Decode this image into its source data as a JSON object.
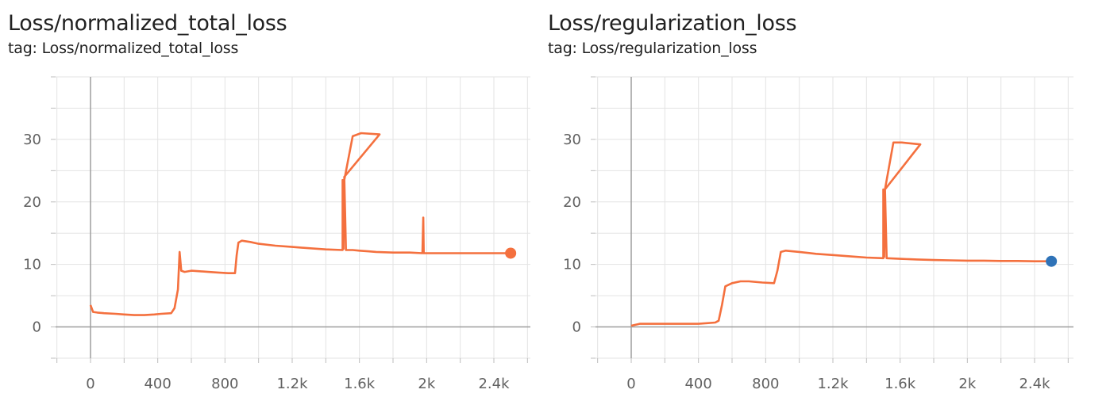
{
  "charts": [
    {
      "title": "Loss/normalized_total_loss",
      "tag": "tag: Loss/normalized_total_loss",
      "line_color": "#f4703e",
      "smooth_color": "#f2a690",
      "end_marker_color": "#f4703e"
    },
    {
      "title": "Loss/regularization_loss",
      "tag": "tag: Loss/regularization_loss",
      "line_color": "#f4703e",
      "smooth_color": "#f2a690",
      "end_marker_color": "#2f73b8"
    }
  ],
  "chart_data": [
    {
      "type": "line",
      "title": "Loss/normalized_total_loss",
      "xlabel": "",
      "ylabel": "",
      "x_ticks": [
        0,
        400,
        800,
        1200,
        1600,
        2000,
        2400
      ],
      "x_tick_labels": [
        "0",
        "400",
        "800",
        "1.2k",
        "1.6k",
        "2k",
        "2.4k"
      ],
      "y_ticks": [
        0,
        10,
        20,
        30
      ],
      "y_tick_labels": [
        "0",
        "10",
        "20",
        "30"
      ],
      "xlim": [
        -200,
        2580
      ],
      "ylim": [
        -5,
        40
      ],
      "grid": true,
      "series": [
        {
          "x": [
            0,
            15,
            40,
            80,
            150,
            200,
            260,
            320,
            380,
            420,
            480,
            500,
            520,
            530,
            540,
            560,
            600,
            650,
            700,
            760,
            820,
            860,
            870,
            880,
            900,
            950,
            1000,
            1100,
            1200,
            1300,
            1400,
            1500,
            1500,
            1505,
            1508,
            1510,
            1560,
            1610,
            1720,
            1510,
            1520,
            1560,
            1600,
            1650,
            1700,
            1800,
            1900,
            1975,
            1980,
            1983,
            1990,
            2100,
            2200,
            2300,
            2400,
            2500
          ],
          "y": [
            3.5,
            2.4,
            2.3,
            2.2,
            2.1,
            2.0,
            1.9,
            1.9,
            2.0,
            2.1,
            2.2,
            3.0,
            6.0,
            12.0,
            9.0,
            8.8,
            9.0,
            8.9,
            8.8,
            8.7,
            8.6,
            8.6,
            11.5,
            13.5,
            13.8,
            13.6,
            13.3,
            13.0,
            12.8,
            12.6,
            12.4,
            12.3,
            23.5,
            12.5,
            23.0,
            23.5,
            30.5,
            31.0,
            30.8,
            24.0,
            12.3,
            12.3,
            12.2,
            12.1,
            12.0,
            11.9,
            11.9,
            11.8,
            17.5,
            11.8,
            11.8,
            11.8,
            11.8,
            11.8,
            11.8,
            11.8
          ]
        }
      ],
      "end_point": {
        "x": 2500,
        "y": 11.8
      }
    },
    {
      "type": "line",
      "title": "Loss/regularization_loss",
      "xlabel": "",
      "ylabel": "",
      "x_ticks": [
        0,
        400,
        800,
        1200,
        1600,
        2000,
        2400
      ],
      "x_tick_labels": [
        "0",
        "400",
        "800",
        "1.2k",
        "1.6k",
        "2k",
        "2.4k"
      ],
      "y_ticks": [
        0,
        10,
        20,
        30
      ],
      "y_tick_labels": [
        "0",
        "10",
        "20",
        "30"
      ],
      "xlim": [
        -200,
        2580
      ],
      "ylim": [
        -5,
        40
      ],
      "grid": true,
      "series": [
        {
          "x": [
            0,
            50,
            150,
            300,
            400,
            450,
            500,
            520,
            540,
            560,
            600,
            650,
            700,
            780,
            850,
            870,
            890,
            920,
            1000,
            1100,
            1200,
            1300,
            1400,
            1500,
            1500,
            1505,
            1510,
            1560,
            1610,
            1720,
            1510,
            1520,
            1600,
            1700,
            1800,
            1900,
            2000,
            2100,
            2200,
            2300,
            2400,
            2500
          ],
          "y": [
            0.2,
            0.5,
            0.5,
            0.5,
            0.5,
            0.6,
            0.7,
            1.0,
            3.5,
            6.5,
            7.0,
            7.3,
            7.3,
            7.1,
            7.0,
            9.0,
            12.0,
            12.2,
            12.0,
            11.7,
            11.5,
            11.3,
            11.1,
            11.0,
            22.0,
            11.2,
            22.0,
            29.5,
            29.5,
            29.2,
            22.0,
            11.0,
            10.9,
            10.8,
            10.7,
            10.65,
            10.6,
            10.6,
            10.55,
            10.55,
            10.5,
            10.5
          ]
        }
      ],
      "end_point": {
        "x": 2500,
        "y": 10.5
      }
    }
  ]
}
